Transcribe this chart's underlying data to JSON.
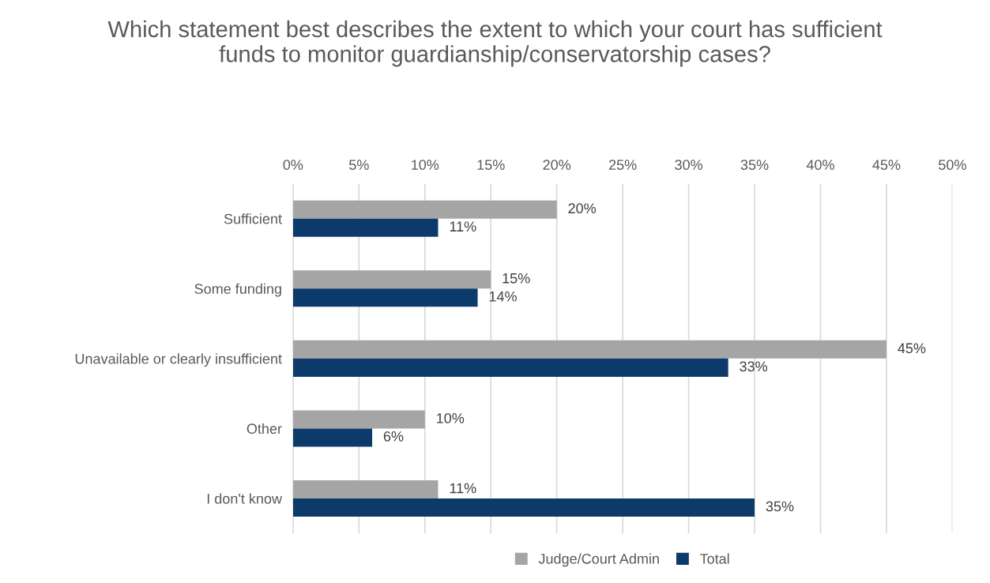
{
  "chart_data": {
    "type": "bar",
    "orientation": "horizontal",
    "title": "Which statement best describes the extent to which your court has sufficient funds to monitor guardianship/conservatorship cases?",
    "categories": [
      "Sufficient",
      "Some funding",
      "Unavailable or clearly insufficient",
      "Other",
      "I don't know"
    ],
    "series": [
      {
        "name": "Judge/Court Admin",
        "color": "#a5a5a5",
        "values": [
          20,
          15,
          45,
          10,
          11
        ],
        "value_labels": [
          "20%",
          "15%",
          "45%",
          "10%",
          "11%"
        ]
      },
      {
        "name": "Total",
        "color": "#0b3a6b",
        "values": [
          11,
          14,
          33,
          6,
          35
        ],
        "value_labels": [
          "11%",
          "14%",
          "33%",
          "6%",
          "35%"
        ]
      }
    ],
    "xlim": [
      0,
      50
    ],
    "xticks": [
      {
        "value": 0,
        "label": "0%"
      },
      {
        "value": 5,
        "label": "5%"
      },
      {
        "value": 10,
        "label": "10%"
      },
      {
        "value": 15,
        "label": "15%"
      },
      {
        "value": 20,
        "label": "20%"
      },
      {
        "value": 25,
        "label": "25%"
      },
      {
        "value": 30,
        "label": "30%"
      },
      {
        "value": 35,
        "label": "35%"
      },
      {
        "value": 40,
        "label": "40%"
      },
      {
        "value": 45,
        "label": "45%"
      },
      {
        "value": 50,
        "label": "50%"
      }
    ],
    "grid": "x",
    "legend": "bottom"
  }
}
